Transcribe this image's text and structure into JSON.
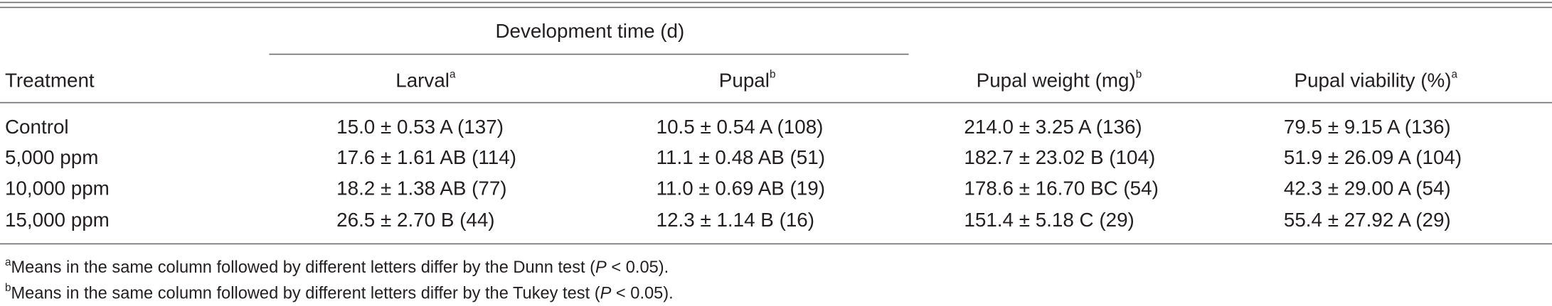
{
  "table": {
    "group_header": "Development time (d)",
    "columns": [
      {
        "text": "Treatment"
      },
      {
        "text": "Larval",
        "sup": "a"
      },
      {
        "text": "Pupal",
        "sup": "b"
      },
      {
        "text": "Pupal weight (mg)",
        "sup": "b"
      },
      {
        "text": "Pupal viability (%)",
        "sup": "a"
      }
    ],
    "rows": [
      [
        "Control",
        "15.0 ± 0.53 A (137)",
        "10.5 ± 0.54 A (108)",
        "214.0 ± 3.25 A (136)",
        "79.5 ± 9.15 A (136)"
      ],
      [
        "5,000 ppm",
        "17.6 ± 1.61 AB (114)",
        "11.1 ± 0.48 AB (51)",
        "182.7 ± 23.02 B (104)",
        "51.9 ± 26.09 A (104)"
      ],
      [
        "10,000 ppm",
        "18.2 ± 1.38 AB (77)",
        "11.0 ± 0.69 AB (19)",
        "178.6 ± 16.70 BC (54)",
        "42.3 ± 29.00 A (54)"
      ],
      [
        "15,000 ppm",
        "26.5 ± 2.70 B (44)",
        "12.3 ± 1.14 B (16)",
        "151.4 ± 5.18 C (29)",
        "55.4 ± 27.92 A (29)"
      ]
    ]
  },
  "footnotes": [
    {
      "mark": "a",
      "text": "Means in the same column followed by different letters differ by the Dunn test (",
      "italic": "P",
      "end": " < 0.05)."
    },
    {
      "mark": "b",
      "text": "Means in the same column followed by different letters differ by the Tukey test (",
      "italic": "P",
      "end": " < 0.05)."
    }
  ]
}
